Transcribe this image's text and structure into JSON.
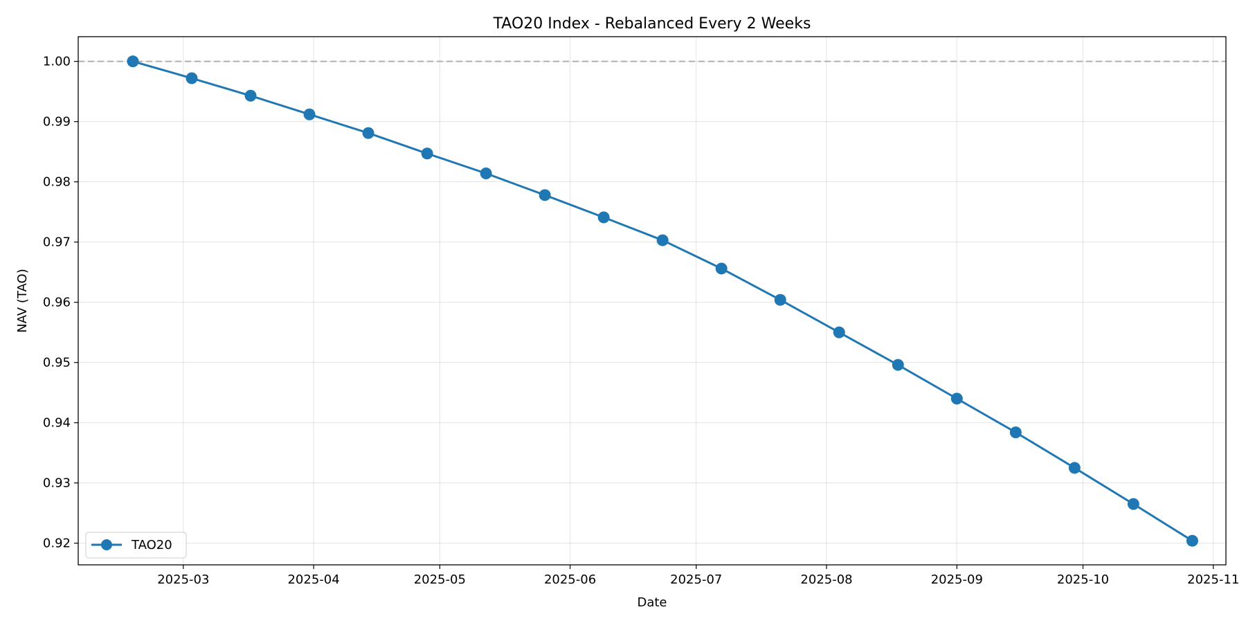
{
  "chart_data": {
    "type": "line",
    "title": "TAO20 Index - Rebalanced Every 2 Weeks",
    "xlabel": "Date",
    "ylabel": "NAV (TAO)",
    "x_type": "date",
    "xlim": [
      "2025-02-04",
      "2025-11-04"
    ],
    "ylim": [
      0.9164,
      1.0041
    ],
    "x_ticks": [
      "2025-03-01",
      "2025-04-01",
      "2025-05-01",
      "2025-06-01",
      "2025-07-01",
      "2025-08-01",
      "2025-09-01",
      "2025-10-01",
      "2025-11-01"
    ],
    "x_tick_labels": [
      "2025-03",
      "2025-04",
      "2025-05",
      "2025-06",
      "2025-07",
      "2025-08",
      "2025-09",
      "2025-10",
      "2025-11"
    ],
    "y_ticks": [
      0.92,
      0.93,
      0.94,
      0.95,
      0.96,
      0.97,
      0.98,
      0.99,
      1.0
    ],
    "y_tick_labels": [
      "0.92",
      "0.93",
      "0.94",
      "0.95",
      "0.96",
      "0.97",
      "0.98",
      "0.99",
      "1.00"
    ],
    "grid": true,
    "legend_position": "lower-left",
    "reference_line": {
      "y": 1.0,
      "style": "dashed",
      "color": "#b3b3b3"
    },
    "series": [
      {
        "name": "TAO20",
        "color": "#1f77b4",
        "marker": "circle",
        "x": [
          "2025-02-17",
          "2025-03-03",
          "2025-03-17",
          "2025-03-31",
          "2025-04-14",
          "2025-04-28",
          "2025-05-12",
          "2025-05-26",
          "2025-06-09",
          "2025-06-23",
          "2025-07-07",
          "2025-07-21",
          "2025-08-04",
          "2025-08-18",
          "2025-09-01",
          "2025-09-15",
          "2025-09-29",
          "2025-10-13",
          "2025-10-27"
        ],
        "y": [
          1.0,
          0.9972,
          0.9943,
          0.9912,
          0.9881,
          0.9847,
          0.9814,
          0.9778,
          0.9741,
          0.9703,
          0.9656,
          0.9604,
          0.955,
          0.9496,
          0.944,
          0.9384,
          0.9325,
          0.9265,
          0.9204
        ]
      }
    ]
  }
}
